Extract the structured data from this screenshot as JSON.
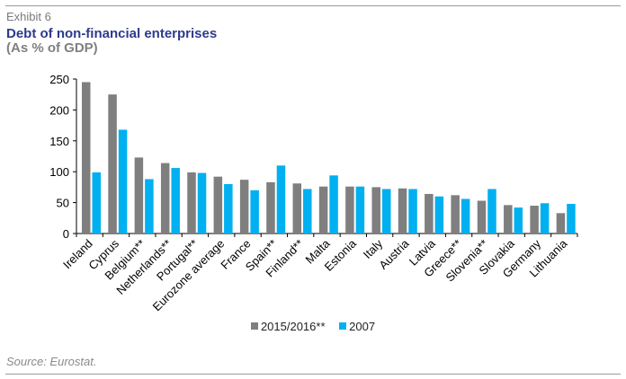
{
  "header": {
    "exhibit": "Exhibit 6",
    "title": "Debt of non-financial enterprises",
    "subtitle": "(As % of GDP)"
  },
  "footer": {
    "source": "Source: Eurostat."
  },
  "colors": {
    "series_2015": "#7f7f7f",
    "series_2007": "#00b0f0",
    "title": "#2e3a8c"
  },
  "chart_data": {
    "type": "bar",
    "categories": [
      "Ireland",
      "Cyprus",
      "Belgium**",
      "Netherlands**",
      "Portugal**",
      "Eurozone average",
      "France",
      "Spain**",
      "Finland**",
      "Malta",
      "Estonia",
      "Italy",
      "Austria",
      "Latvia",
      "Greece**",
      "Slovenia**",
      "Slovakia",
      "Germany",
      "Lithuania"
    ],
    "series": [
      {
        "name": "2015/2016**",
        "values": [
          245,
          225,
          123,
          114,
          99,
          92,
          87,
          83,
          81,
          76,
          76,
          75,
          73,
          64,
          62,
          53,
          46,
          45,
          33
        ]
      },
      {
        "name": "2007",
        "values": [
          99,
          168,
          88,
          106,
          98,
          80,
          70,
          110,
          72,
          94,
          76,
          72,
          72,
          60,
          56,
          72,
          42,
          49,
          48
        ]
      }
    ],
    "ylim": [
      0,
      250
    ],
    "yticks": [
      0,
      50,
      100,
      150,
      200,
      250
    ],
    "legend": "bottom",
    "grid": false
  }
}
